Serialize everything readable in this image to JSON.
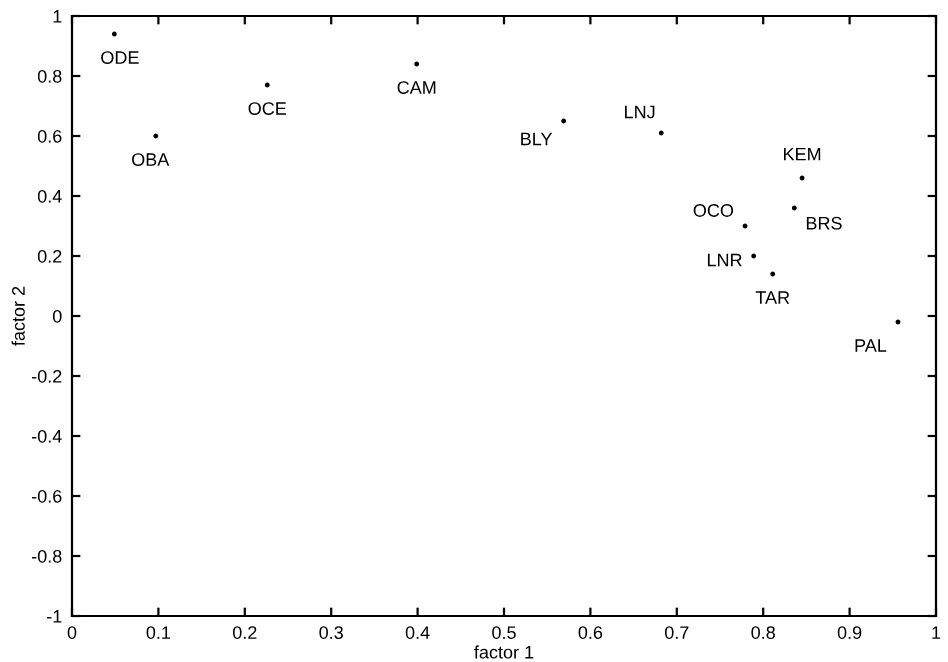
{
  "chart_data": {
    "type": "scatter",
    "xlabel": "factor 1",
    "ylabel": "factor 2",
    "x": [
      0.049,
      0.097,
      0.226,
      0.399,
      0.569,
      0.682,
      0.845,
      0.836,
      0.779,
      0.789,
      0.811,
      0.956
    ],
    "values": [
      0.94,
      0.6,
      0.77,
      0.84,
      0.65,
      0.61,
      0.46,
      0.36,
      0.3,
      0.2,
      0.14,
      -0.02
    ],
    "color": "#000000",
    "marker": "circle",
    "annotations": [
      {
        "text": "ODE",
        "x": 0.049,
        "y": 0.94
      },
      {
        "text": "OBA",
        "x": 0.097,
        "y": 0.6
      },
      {
        "text": "OCE",
        "x": 0.226,
        "y": 0.77
      },
      {
        "text": "CAM",
        "x": 0.399,
        "y": 0.84
      },
      {
        "text": "BLY",
        "x": 0.569,
        "y": 0.65
      },
      {
        "text": "LNJ",
        "x": 0.682,
        "y": 0.61
      },
      {
        "text": "KEM",
        "x": 0.845,
        "y": 0.46
      },
      {
        "text": "BRS",
        "x": 0.836,
        "y": 0.36
      },
      {
        "text": "OCO",
        "x": 0.779,
        "y": 0.3
      },
      {
        "text": "LNR",
        "x": 0.789,
        "y": 0.2
      },
      {
        "text": "TAR",
        "x": 0.811,
        "y": 0.14
      },
      {
        "text": "PAL",
        "x": 0.956,
        "y": -0.02
      }
    ],
    "xlim": [
      0,
      1
    ],
    "ylim": [
      -1,
      1
    ],
    "xticks": [
      0,
      0.1,
      0.2,
      0.3,
      0.4,
      0.5,
      0.6,
      0.7,
      0.8,
      0.9,
      1
    ],
    "yticks": [
      -1,
      -0.8,
      -0.6,
      -0.4,
      -0.2,
      0,
      0.2,
      0.4,
      0.6,
      0.8,
      1
    ],
    "grid": false
  }
}
